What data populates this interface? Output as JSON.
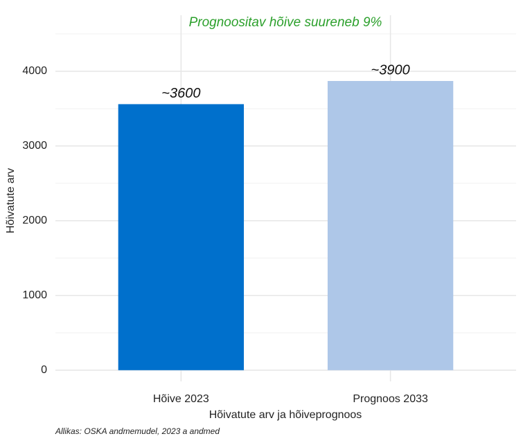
{
  "chart_data": {
    "type": "bar",
    "title": "Prognoositav hõive suureneb 9%",
    "categories": [
      "Hõive 2023",
      "Prognoos 2033"
    ],
    "values": [
      3560,
      3870
    ],
    "value_labels": [
      "~3600",
      "~3900"
    ],
    "colors": [
      "#0070cc",
      "#aec7e8"
    ],
    "x_label": "Hõivatute arv ja hõiveprognoos",
    "y_label": "Hõivatute arv",
    "caption": "Allikas: OSKA andmemudel, 2023 a andmed",
    "ylim": [
      -150,
      4750
    ],
    "yticks": [
      0,
      1000,
      2000,
      3000,
      4000
    ],
    "grid": true
  }
}
